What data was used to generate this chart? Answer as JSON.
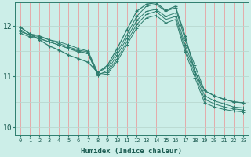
{
  "xlabel": "Humidex (Indice chaleur)",
  "bg_color": "#cceee8",
  "line_color": "#2e7d6e",
  "grid_color_v": "#e8a0a0",
  "grid_color_h": "#b8d8d0",
  "xlim": [
    -0.5,
    23.5
  ],
  "ylim": [
    9.85,
    12.45
  ],
  "yticks": [
    10,
    11,
    12
  ],
  "xticks": [
    0,
    1,
    2,
    3,
    4,
    5,
    6,
    7,
    8,
    9,
    10,
    11,
    12,
    13,
    14,
    15,
    16,
    17,
    18,
    19,
    20,
    21,
    22,
    23
  ],
  "series": [
    [
      11.97,
      11.84,
      11.8,
      11.72,
      11.68,
      11.62,
      11.55,
      11.5,
      11.08,
      11.18,
      11.48,
      11.82,
      12.18,
      12.38,
      12.42,
      12.28,
      12.35,
      11.72,
      11.22,
      10.72,
      10.62,
      10.55,
      10.5,
      10.48
    ],
    [
      11.92,
      11.8,
      11.75,
      11.68,
      11.62,
      11.55,
      11.5,
      11.45,
      11.02,
      11.12,
      11.42,
      11.75,
      12.1,
      12.28,
      12.32,
      12.18,
      12.25,
      11.62,
      11.12,
      10.62,
      10.52,
      10.46,
      10.4,
      10.38
    ],
    [
      11.88,
      11.82,
      11.78,
      11.72,
      11.65,
      11.58,
      11.52,
      11.48,
      11.05,
      11.08,
      11.35,
      11.68,
      12.02,
      12.22,
      12.28,
      12.12,
      12.18,
      11.55,
      11.05,
      10.55,
      10.46,
      10.4,
      10.36,
      10.34
    ],
    [
      11.85,
      11.78,
      11.74,
      11.68,
      11.62,
      11.55,
      11.48,
      11.45,
      11.02,
      11.05,
      11.3,
      11.62,
      11.95,
      12.15,
      12.2,
      12.05,
      12.12,
      11.48,
      10.98,
      10.48,
      10.4,
      10.35,
      10.32,
      10.3
    ]
  ],
  "spike_series": [
    11.97,
    11.84,
    11.72,
    11.6,
    11.52,
    11.42,
    11.35,
    11.28,
    11.08,
    11.22,
    11.55,
    11.92,
    12.28,
    12.42,
    12.45,
    12.3,
    12.38,
    11.8,
    11.1,
    10.72,
    10.62,
    10.55,
    10.5,
    10.48
  ]
}
